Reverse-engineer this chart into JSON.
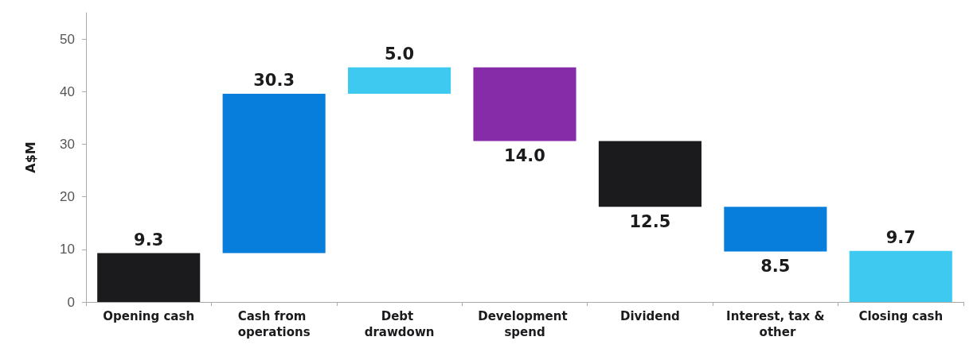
{
  "chart_data": {
    "type": "bar",
    "ylabel": "A$M",
    "categories": [
      "Opening cash",
      "Cash from operations",
      "Debt drawdown",
      "Development spend",
      "Dividend",
      "Interest, tax & other",
      "Closing cash"
    ],
    "values": [
      9.3,
      30.3,
      5.0,
      -14.0,
      -12.5,
      -8.5,
      9.7
    ],
    "base": [
      0,
      9.3,
      39.6,
      44.6,
      30.6,
      18.1,
      0
    ],
    "colors": [
      "#1b1b1e",
      "#087edc",
      "#3ec9f1",
      "#872ca8",
      "#1b1b1e",
      "#087edc",
      "#3ec9f1"
    ],
    "value_labels": [
      "9.3",
      "30.3",
      "5.0",
      "14.0",
      "12.5",
      "8.5",
      "9.7"
    ],
    "ylim": [
      0,
      55
    ],
    "yticks": [
      0,
      10,
      20,
      30,
      40,
      50
    ],
    "grid": false
  }
}
